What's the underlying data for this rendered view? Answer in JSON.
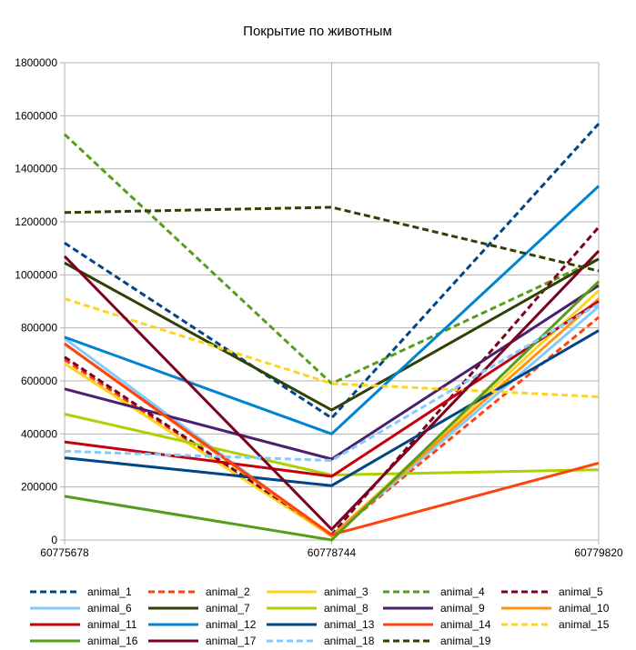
{
  "chart_data": {
    "type": "line",
    "title": "Покрытие по животным",
    "xlabel": "",
    "ylabel": "",
    "x": [
      "60775678",
      "60778744",
      "60779820"
    ],
    "ylim": [
      0,
      1800000
    ],
    "yticks": [
      0,
      200000,
      400000,
      600000,
      800000,
      1000000,
      1200000,
      1400000,
      1600000,
      1800000
    ],
    "ytick_labels": [
      "0",
      "200000",
      "400000",
      "600000",
      "800000",
      "1000000",
      "1200000",
      "1400000",
      "1600000",
      "1800000"
    ],
    "grid": true,
    "legend_position": "bottom",
    "series": [
      {
        "name": "animal_1",
        "values": [
          1120000,
          460000,
          1570000
        ],
        "color": "#004586",
        "dashed": true
      },
      {
        "name": "animal_2",
        "values": [
          680000,
          15000,
          840000
        ],
        "color": "#ff420e",
        "dashed": true
      },
      {
        "name": "animal_3",
        "values": [
          665000,
          15000,
          940000
        ],
        "color": "#ffd320",
        "dashed": false
      },
      {
        "name": "animal_4",
        "values": [
          1530000,
          590000,
          1060000
        ],
        "color": "#579d1c",
        "dashed": true
      },
      {
        "name": "animal_5",
        "values": [
          690000,
          20000,
          1180000
        ],
        "color": "#7e0021",
        "dashed": true
      },
      {
        "name": "animal_6",
        "values": [
          760000,
          15000,
          880000
        ],
        "color": "#83caff",
        "dashed": false
      },
      {
        "name": "animal_7",
        "values": [
          1045000,
          490000,
          1060000
        ],
        "color": "#314004",
        "dashed": false
      },
      {
        "name": "animal_8",
        "values": [
          475000,
          245000,
          265000
        ],
        "color": "#aecf00",
        "dashed": false
      },
      {
        "name": "animal_9",
        "values": [
          570000,
          305000,
          960000
        ],
        "color": "#4b1f6f",
        "dashed": false
      },
      {
        "name": "animal_10",
        "values": [
          740000,
          15000,
          910000
        ],
        "color": "#ff950e",
        "dashed": false
      },
      {
        "name": "animal_11",
        "values": [
          370000,
          240000,
          900000
        ],
        "color": "#c5000b",
        "dashed": false
      },
      {
        "name": "animal_12",
        "values": [
          765000,
          400000,
          1335000
        ],
        "color": "#0084d1",
        "dashed": false
      },
      {
        "name": "animal_13",
        "values": [
          310000,
          205000,
          790000
        ],
        "color": "#004586",
        "dashed": false
      },
      {
        "name": "animal_14",
        "values": [
          740000,
          20000,
          290000
        ],
        "color": "#ff420e",
        "dashed": false
      },
      {
        "name": "animal_15",
        "values": [
          910000,
          590000,
          540000
        ],
        "color": "#ffd320",
        "dashed": true
      },
      {
        "name": "animal_16",
        "values": [
          165000,
          0,
          975000
        ],
        "color": "#579d1c",
        "dashed": false
      },
      {
        "name": "animal_17",
        "values": [
          1070000,
          40000,
          1090000
        ],
        "color": "#7e0021",
        "dashed": false
      },
      {
        "name": "animal_18",
        "values": [
          335000,
          300000,
          890000
        ],
        "color": "#83caff",
        "dashed": true
      },
      {
        "name": "animal_19",
        "values": [
          1235000,
          1255000,
          1015000
        ],
        "color": "#314004",
        "dashed": true
      }
    ]
  }
}
